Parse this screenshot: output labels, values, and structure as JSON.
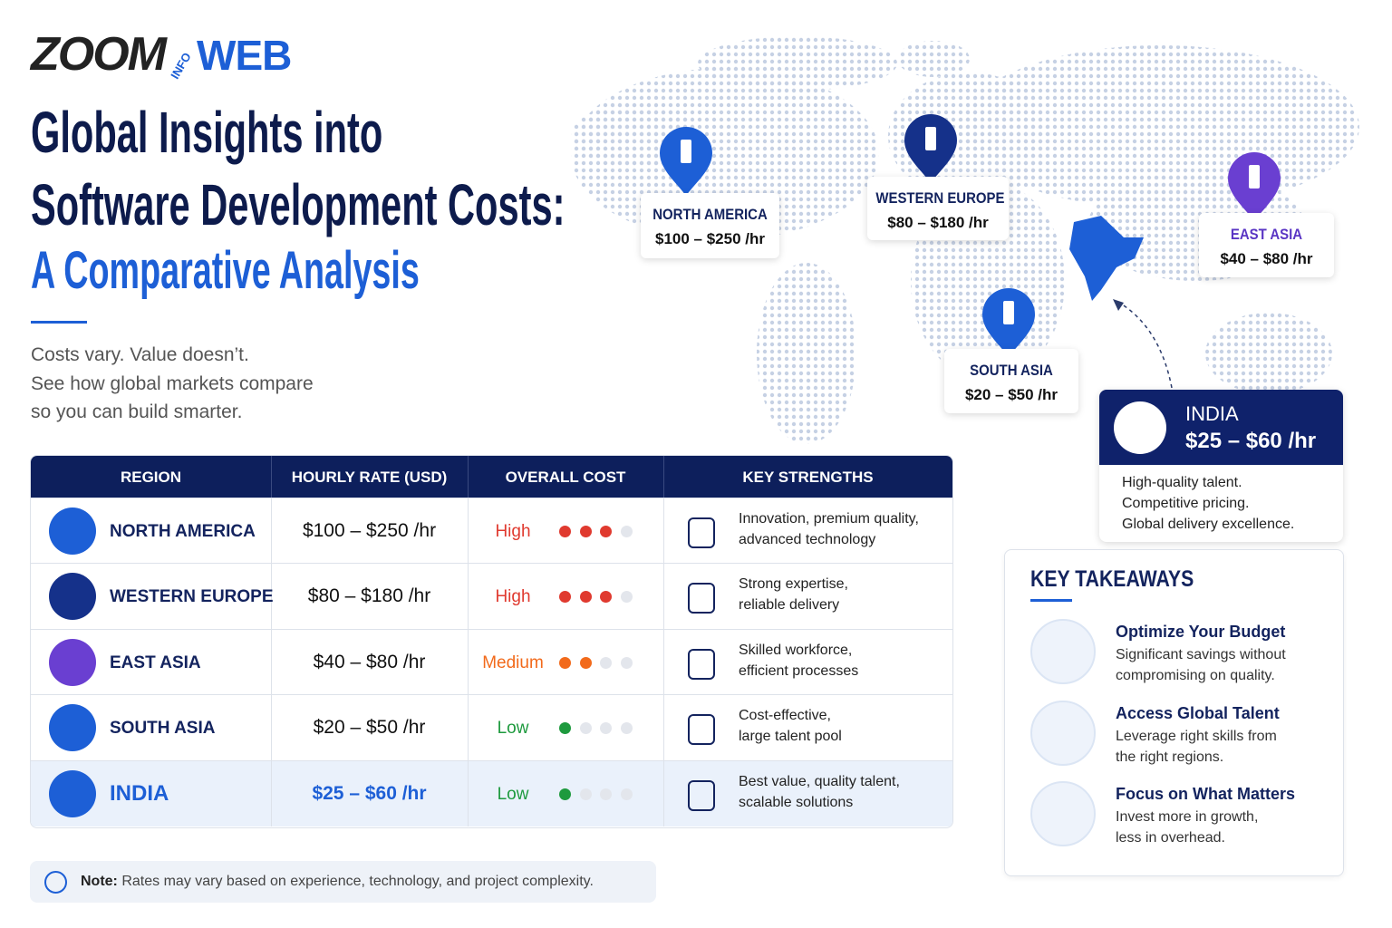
{
  "logo": {
    "zoom": "ZOOM",
    "info": "INFO",
    "web": "WEB"
  },
  "header": {
    "title_lines": [
      "Global Insights into",
      "Software Development Costs:"
    ],
    "subtitle": "A Comparative Analysis",
    "intro_lines": [
      "Costs vary. Value doesn’t.",
      "See how global markets compare",
      "so you can build smarter."
    ]
  },
  "map_pins": [
    {
      "region": "NORTH AMERICA",
      "rate": "$100 – $250 /hr",
      "color": "#1d5fd6"
    },
    {
      "region": "WESTERN EUROPE",
      "rate": "$80 – $180 /hr",
      "color": "#15318a"
    },
    {
      "region": "EAST ASIA",
      "rate": "$40 – $80 /hr",
      "color": "#6a3fd1"
    },
    {
      "region": "SOUTH ASIA",
      "rate": "$20 – $50 /hr",
      "color": "#1d5fd6"
    }
  ],
  "india_callout": {
    "region": "INDIA",
    "rate": "$25 – $60 /hr",
    "lines": [
      "High-quality talent.",
      "Competitive pricing.",
      "Global delivery excellence."
    ]
  },
  "table": {
    "headers": [
      "REGION",
      "HOURLY RATE (USD)",
      "OVERALL COST",
      "KEY STRENGTHS"
    ],
    "dots_total": 4,
    "rows": [
      {
        "region": "NORTH AMERICA",
        "rate": "$100 – $250 /hr",
        "cost": "High",
        "cost_color": "#e03a2f",
        "dots_filled": 3,
        "strengths": [
          "Innovation, premium quality,",
          "advanced technology"
        ]
      },
      {
        "region": "WESTERN EUROPE",
        "rate": "$80 – $180 /hr",
        "cost": "High",
        "cost_color": "#e03a2f",
        "dots_filled": 3,
        "strengths": [
          "Strong expertise,",
          "reliable delivery"
        ]
      },
      {
        "region": "EAST ASIA",
        "rate": "$40 – $80 /hr",
        "cost": "Medium",
        "cost_color": "#f26a1b",
        "dots_filled": 2,
        "strengths": [
          "Skilled workforce,",
          "efficient processes"
        ]
      },
      {
        "region": "SOUTH ASIA",
        "rate": "$20 – $50 /hr",
        "cost": "Low",
        "cost_color": "#1e9a3e",
        "dots_filled": 1,
        "strengths": [
          "Cost-effective,",
          "large talent pool"
        ]
      },
      {
        "region": "INDIA",
        "rate": "$25 – $60 /hr",
        "cost": "Low",
        "cost_color": "#1e9a3e",
        "dots_filled": 1,
        "strengths": [
          "Best value, quality talent,",
          "scalable solutions"
        ]
      }
    ]
  },
  "note": {
    "label": "Note:",
    "text": "Rates may vary based on experience, technology, and project complexity."
  },
  "takeaways": {
    "title": "KEY TAKEAWAYS",
    "items": [
      {
        "title": "Optimize Your Budget",
        "lines": [
          "Significant savings without",
          "compromising on quality."
        ]
      },
      {
        "title": "Access Global Talent",
        "lines": [
          "Leverage right skills from",
          "the right regions."
        ]
      },
      {
        "title": "Focus on What Matters",
        "lines": [
          "Invest more in growth,",
          "less in overhead."
        ]
      }
    ]
  }
}
